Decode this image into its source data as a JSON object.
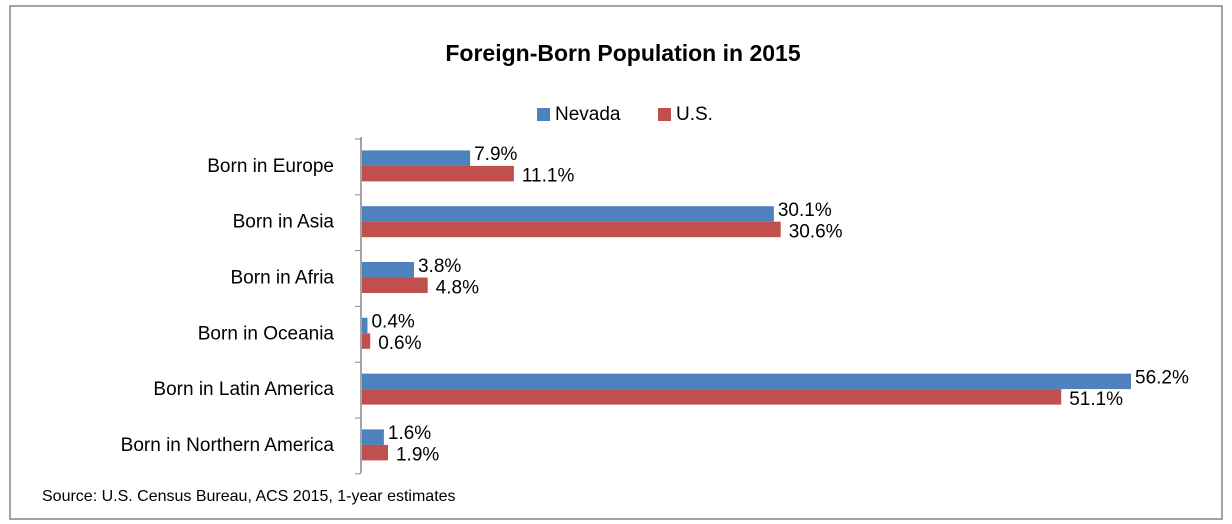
{
  "chart_data": {
    "type": "hbar",
    "title": "Foreign-Born Population in 2015",
    "categories": [
      "Born in Europe",
      "Born in Asia",
      "Born in Afria",
      "Born in Oceania",
      "Born in Latin America",
      "Born in Northern America"
    ],
    "series": [
      {
        "name": "Nevada",
        "color": "#4f81bd",
        "values": [
          7.9,
          30.1,
          3.8,
          0.4,
          56.2,
          1.6
        ],
        "value_labels": [
          "7.9%",
          "30.1%",
          "3.8%",
          "0.4%",
          "56.2%",
          "1.6%"
        ]
      },
      {
        "name": "U.S.",
        "color": "#c0504d",
        "values": [
          11.1,
          30.6,
          4.8,
          0.6,
          51.1,
          1.9
        ],
        "value_labels": [
          "11.1%",
          "30.6%",
          "4.8%",
          "0.6%",
          "51.1%",
          "1.9%"
        ]
      }
    ],
    "legend": "top",
    "source": "Source: U.S. Census Bureau, ACS 2015, 1-year estimates"
  }
}
